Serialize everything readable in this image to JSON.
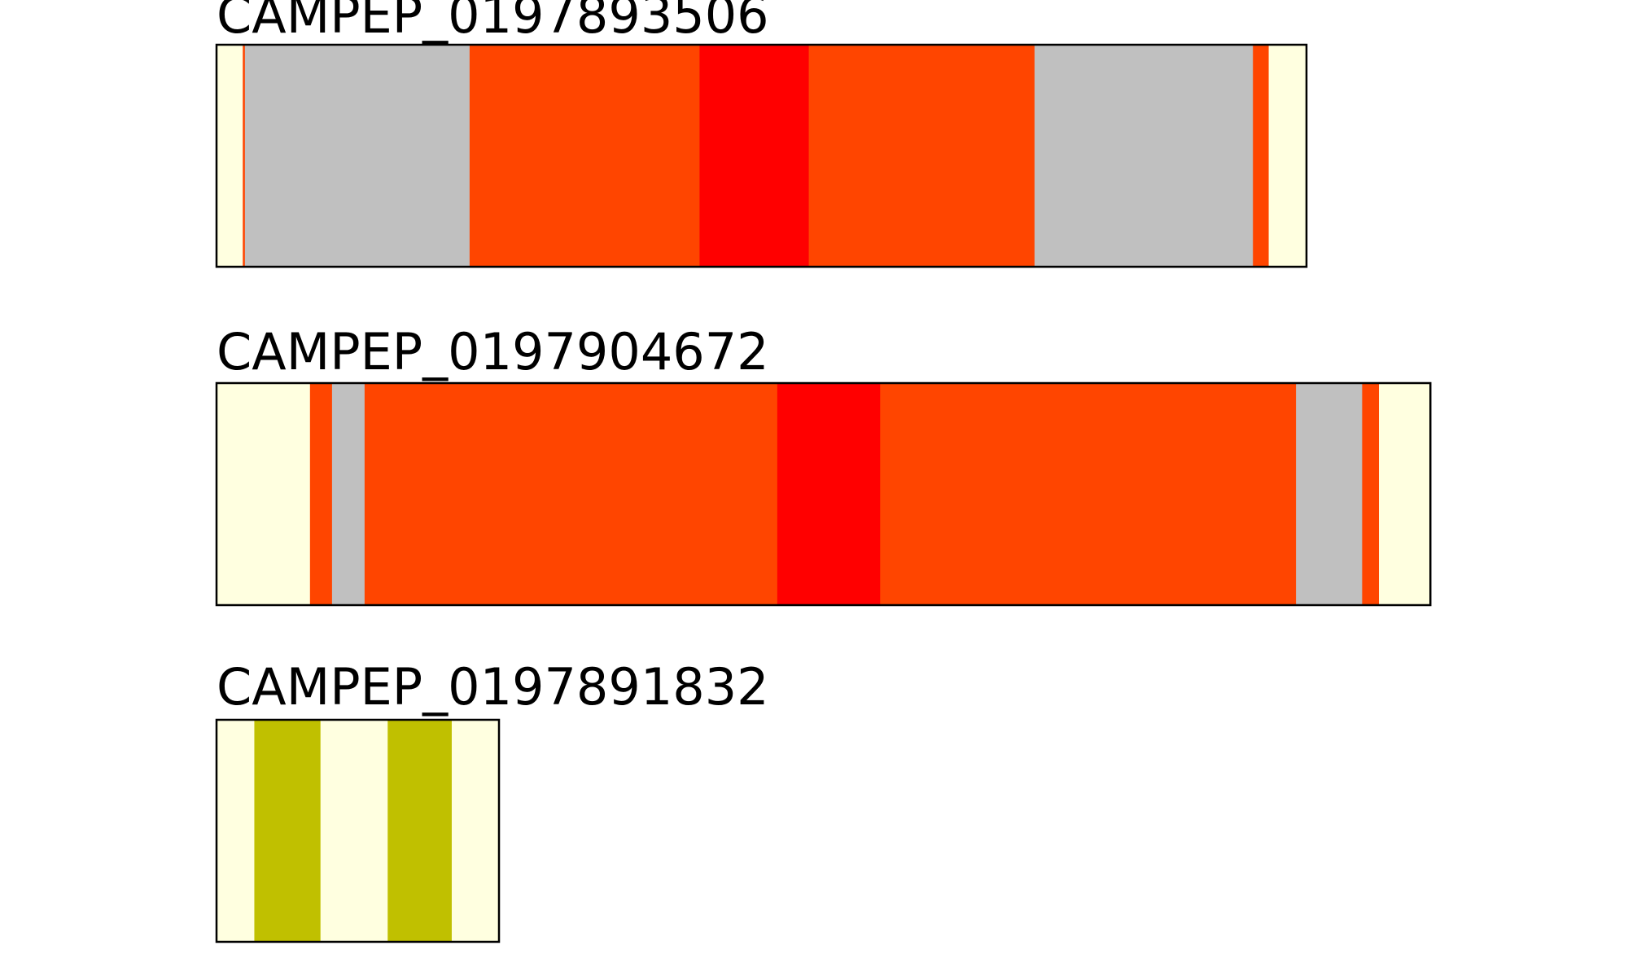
{
  "colors": {
    "lightyellow": "#ffffe0",
    "orangered": "#ff4500",
    "red": "#ff0000",
    "silver": "#c0c0c0",
    "olive": "#c0c000",
    "border": "#000000"
  },
  "tracks": [
    {
      "title": "CAMPEP_0197893506",
      "length": 1038,
      "segments": [
        {
          "start": 0,
          "end": 25,
          "color": "#ffffe0"
        },
        {
          "start": 25,
          "end": 27,
          "color": "#ff4500"
        },
        {
          "start": 27,
          "end": 241,
          "color": "#c0c0c0"
        },
        {
          "start": 241,
          "end": 460,
          "color": "#ff4500"
        },
        {
          "start": 460,
          "end": 564,
          "color": "#ff0000"
        },
        {
          "start": 564,
          "end": 779,
          "color": "#ff4500"
        },
        {
          "start": 779,
          "end": 987,
          "color": "#c0c0c0"
        },
        {
          "start": 987,
          "end": 1002,
          "color": "#ff4500"
        },
        {
          "start": 1002,
          "end": 1038,
          "color": "#ffffe0"
        }
      ]
    },
    {
      "title": "CAMPEP_0197904672",
      "length": 1156,
      "segments": [
        {
          "start": 0,
          "end": 89,
          "color": "#ffffe0"
        },
        {
          "start": 89,
          "end": 110,
          "color": "#ff4500"
        },
        {
          "start": 110,
          "end": 141,
          "color": "#c0c0c0"
        },
        {
          "start": 141,
          "end": 534,
          "color": "#ff4500"
        },
        {
          "start": 534,
          "end": 632,
          "color": "#ff0000"
        },
        {
          "start": 632,
          "end": 1028,
          "color": "#ff4500"
        },
        {
          "start": 1028,
          "end": 1091,
          "color": "#c0c0c0"
        },
        {
          "start": 1091,
          "end": 1107,
          "color": "#ff4500"
        },
        {
          "start": 1107,
          "end": 1156,
          "color": "#ffffe0"
        }
      ]
    },
    {
      "title": "CAMPEP_0197891832",
      "length": 269,
      "segments": [
        {
          "start": 0,
          "end": 36,
          "color": "#ffffe0"
        },
        {
          "start": 36,
          "end": 99,
          "color": "#c0c000"
        },
        {
          "start": 99,
          "end": 163,
          "color": "#ffffe0"
        },
        {
          "start": 163,
          "end": 224,
          "color": "#c0c000"
        },
        {
          "start": 224,
          "end": 269,
          "color": "#ffffe0"
        }
      ]
    }
  ]
}
